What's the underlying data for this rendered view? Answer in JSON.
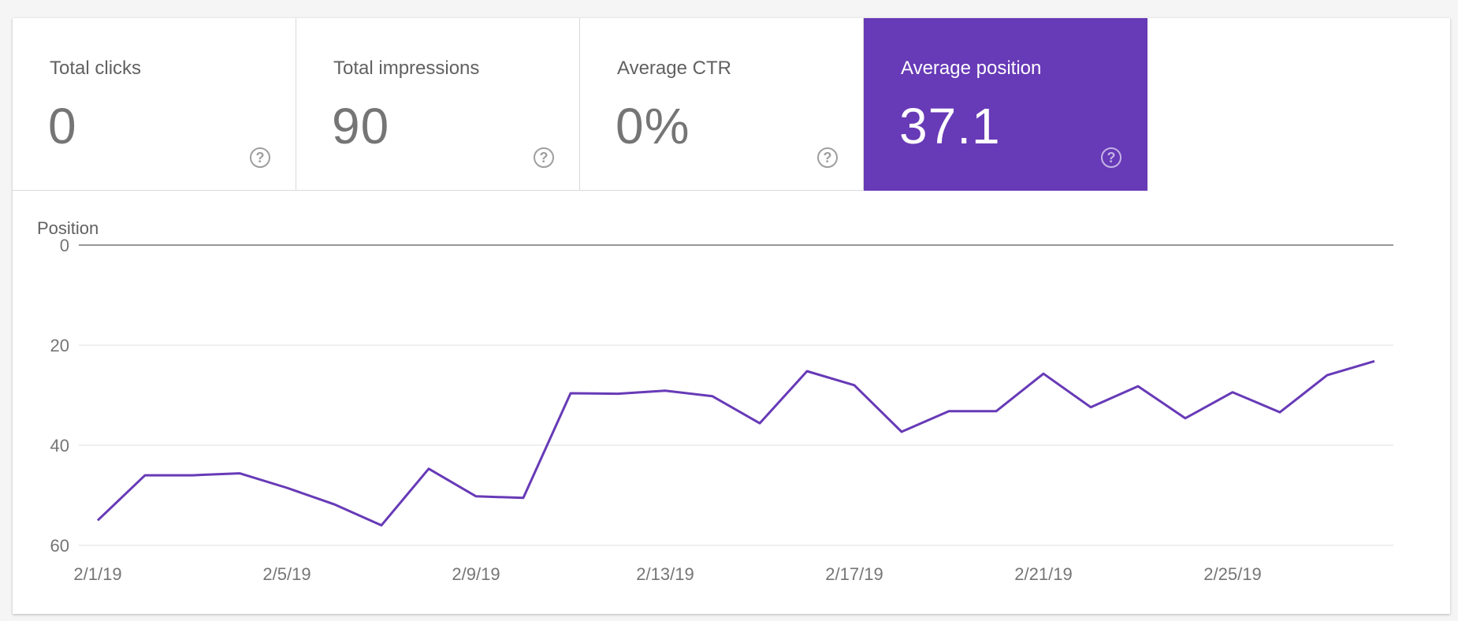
{
  "metrics": [
    {
      "label": "Total clicks",
      "value": "0",
      "selected": false
    },
    {
      "label": "Total impressions",
      "value": "90",
      "selected": false
    },
    {
      "label": "Average CTR",
      "value": "0%",
      "selected": false
    },
    {
      "label": "Average position",
      "value": "37.1",
      "selected": true
    }
  ],
  "help_icon": "help-circle-icon",
  "colors": {
    "selected_metric": "#673ab7",
    "line": "#673ab7",
    "gridline": "#e0e0e0",
    "axis_text": "#757575"
  },
  "chart_data": {
    "type": "line",
    "ylabel": "Position",
    "y_inverted": true,
    "ylim": [
      0,
      60
    ],
    "yticks": [
      0,
      20,
      40,
      60
    ],
    "xtick_labels": [
      "2/1/19",
      "2/5/19",
      "2/9/19",
      "2/13/19",
      "2/17/19",
      "2/21/19",
      "2/25/19"
    ],
    "grid": true,
    "series": [
      {
        "values": [
          {
            "x": "2/1/19",
            "y": 55
          },
          {
            "x": "2/2/19",
            "y": 46
          },
          {
            "x": "2/3/19",
            "y": 46
          },
          {
            "x": "2/4/19",
            "y": 45.6
          },
          {
            "x": "2/5/19",
            "y": 48.5
          },
          {
            "x": "2/6/19",
            "y": 51.8
          },
          {
            "x": "2/7/19",
            "y": 56
          },
          {
            "x": "2/8/19",
            "y": 44.7
          },
          {
            "x": "2/9/19",
            "y": 50.2
          },
          {
            "x": "2/10/19",
            "y": 50.5
          },
          {
            "x": "2/11/19",
            "y": 29.6
          },
          {
            "x": "2/12/19",
            "y": 29.7
          },
          {
            "x": "2/13/19",
            "y": 29.1
          },
          {
            "x": "2/14/19",
            "y": 30.2
          },
          {
            "x": "2/15/19",
            "y": 35.6
          },
          {
            "x": "2/16/19",
            "y": 25.2
          },
          {
            "x": "2/17/19",
            "y": 28
          },
          {
            "x": "2/18/19",
            "y": 37.3
          },
          {
            "x": "2/19/19",
            "y": 33.2
          },
          {
            "x": "2/20/19",
            "y": 33.2
          },
          {
            "x": "2/21/19",
            "y": 25.7
          },
          {
            "x": "2/22/19",
            "y": 32.4
          },
          {
            "x": "2/23/19",
            "y": 28.2
          },
          {
            "x": "2/24/19",
            "y": 34.6
          },
          {
            "x": "2/25/19",
            "y": 29.4
          },
          {
            "x": "2/26/19",
            "y": 33.4
          },
          {
            "x": "2/27/19",
            "y": 26
          },
          {
            "x": "2/28/19",
            "y": 23.2
          }
        ]
      }
    ]
  }
}
